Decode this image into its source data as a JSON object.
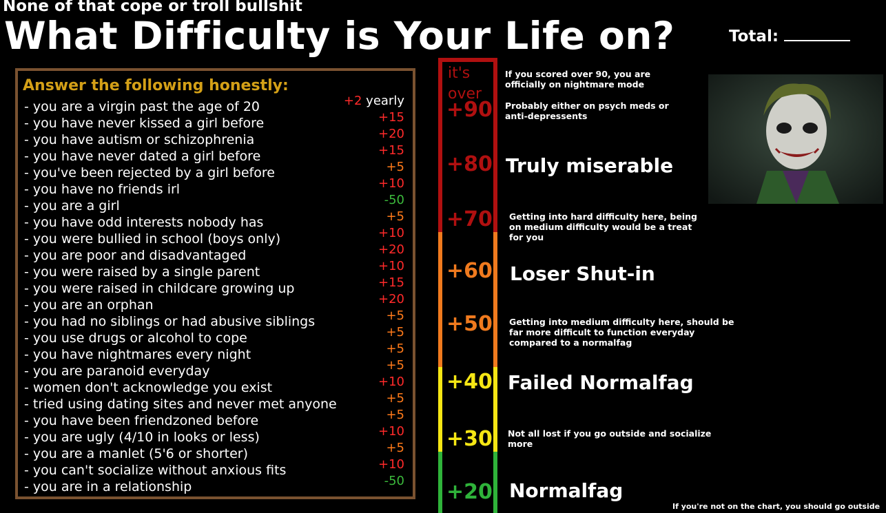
{
  "header": {
    "subtitle": "None of that cope or troll bullshit",
    "title": "What Difficulty is Your Life on?",
    "total_label": "Total:"
  },
  "questionnaire": {
    "heading": "Answer the following honestly:",
    "items": [
      {
        "text": "- you are a virgin past the age of 20",
        "points": "+2",
        "suffix": " yearly",
        "color": "red"
      },
      {
        "text": "- you have never kissed a girl before",
        "points": "+15",
        "suffix": "",
        "color": "red"
      },
      {
        "text": "- you have autism or schizophrenia",
        "points": "+20",
        "suffix": "",
        "color": "red"
      },
      {
        "text": "- you have never dated a girl before",
        "points": "+15",
        "suffix": "",
        "color": "red"
      },
      {
        "text": "- you've been rejected by a girl before",
        "points": "+5",
        "suffix": "",
        "color": "orange"
      },
      {
        "text": "- you have no friends irl",
        "points": "+10",
        "suffix": "",
        "color": "red"
      },
      {
        "text": "- you are a girl",
        "points": "-50",
        "suffix": "",
        "color": "green"
      },
      {
        "text": "- you have odd interests nobody has",
        "points": "+5",
        "suffix": "",
        "color": "orange"
      },
      {
        "text": "- you were bullied in school (boys only)",
        "points": "+10",
        "suffix": "",
        "color": "red"
      },
      {
        "text": "- you are poor and disadvantaged",
        "points": "+20",
        "suffix": "",
        "color": "red"
      },
      {
        "text": "- you were raised by a single parent",
        "points": "+10",
        "suffix": "",
        "color": "red"
      },
      {
        "text": "- you were raised in childcare growing up",
        "points": "+15",
        "suffix": "",
        "color": "red"
      },
      {
        "text": "- you are an orphan",
        "points": "+20",
        "suffix": "",
        "color": "red"
      },
      {
        "text": "- you had no siblings or had abusive siblings",
        "points": "+5",
        "suffix": "",
        "color": "orange"
      },
      {
        "text": "- you use drugs or alcohol to cope",
        "points": "+5",
        "suffix": "",
        "color": "orange"
      },
      {
        "text": "- you have nightmares every night",
        "points": "+5",
        "suffix": "",
        "color": "orange"
      },
      {
        "text": "- you are paranoid everyday",
        "points": "+5",
        "suffix": "",
        "color": "orange"
      },
      {
        "text": "- women don't acknowledge you exist",
        "points": "+10",
        "suffix": "",
        "color": "red"
      },
      {
        "text": "- tried using dating sites and never met anyone",
        "points": "+5",
        "suffix": "",
        "color": "orange"
      },
      {
        "text": "- you have been friendzoned before",
        "points": "+5",
        "suffix": "",
        "color": "orange"
      },
      {
        "text": "- you are ugly (4/10 in looks or less)",
        "points": "+10",
        "suffix": "",
        "color": "red"
      },
      {
        "text": "- you are a manlet (5'6 or shorter)",
        "points": "+5",
        "suffix": "",
        "color": "orange"
      },
      {
        "text": "- you can't socialize without  anxious fits",
        "points": "+10",
        "suffix": "",
        "color": "red"
      },
      {
        "text": "- you are in a relationship",
        "points": "-50",
        "suffix": "",
        "color": "green"
      }
    ]
  },
  "scale": {
    "over_line1": "it's",
    "over_line2": "over",
    "levels": {
      "p90": "+90",
      "p80": "+80",
      "p70": "+70",
      "p60": "+60",
      "p50": "+50",
      "p40": "+40",
      "p30": "+30",
      "p20": "+20"
    },
    "notes": {
      "n90a": "If you scored over 90, you are",
      "n90b": "officially on nightmare mode",
      "n90c": "Probably either on psych meds or",
      "n90d": "anti-depressents",
      "n80": "Truly miserable",
      "n70a": "Getting into hard difficulty here, being",
      "n70b": "on medium difficulty would be a treat",
      "n70c": "for you",
      "n60": "Loser Shut-in",
      "n50a": "Getting into medium difficulty here, should be",
      "n50b": "far more difficult to function everyday",
      "n50c": "compared to a normalfag",
      "n40": "Failed Normalfag",
      "n30a": "Not all lost if you go outside and socialize",
      "n30b": "more",
      "n20": "Normalfag"
    },
    "footer": "If you're not on the chart, you should go outside"
  },
  "colors": {
    "red": "#b01010",
    "orange": "#f07a1e",
    "yellow": "#f5e614",
    "green": "#2fb33a",
    "heading_gold": "#d4a017",
    "box_border": "#7a5230"
  }
}
